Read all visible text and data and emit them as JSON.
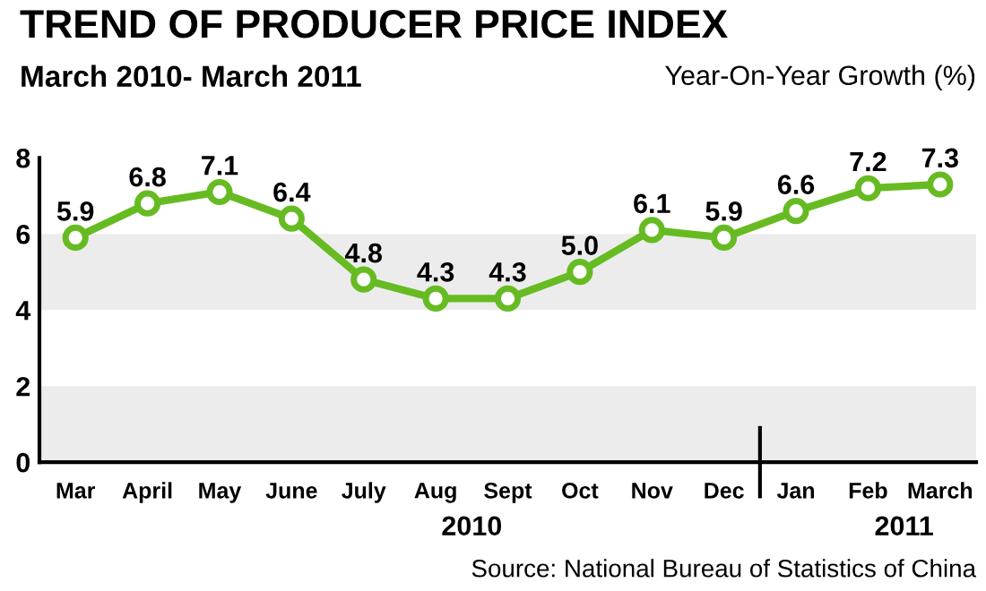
{
  "chart_data": {
    "type": "line",
    "title": "TREND OF PRODUCER PRICE INDEX",
    "subtitle": "March 2010- March 2011",
    "ylabel": "Year-On-Year Growth (%)",
    "categories": [
      "Mar",
      "April",
      "May",
      "June",
      "July",
      "Aug",
      "Sept",
      "Oct",
      "Nov",
      "Dec",
      "Jan",
      "Feb",
      "March"
    ],
    "series": [
      {
        "color": "#66bb22",
        "values": [
          5.9,
          6.8,
          7.1,
          6.4,
          4.8,
          4.3,
          4.3,
          5.0,
          6.1,
          5.9,
          6.6,
          7.2,
          7.3
        ],
        "value_labels": [
          "5.9",
          "6.8",
          "7.1",
          "6.4",
          "4.8",
          "4.3",
          "4.3",
          "5.0",
          "6.1",
          "5.9",
          "6.6",
          "7.2",
          "7.3"
        ]
      }
    ],
    "ylim": [
      0,
      8
    ],
    "yticks": [
      0,
      2,
      4,
      6,
      8
    ],
    "bands": [
      {
        "axis": "y",
        "from": 0,
        "to": 2,
        "color": "#ececec"
      },
      {
        "axis": "y",
        "from": 4,
        "to": 6,
        "color": "#ececec"
      }
    ],
    "marker": "circle",
    "line_style": "solid",
    "grid": false,
    "legend": false,
    "annotations": [
      "2010",
      "2011",
      "Source: National Bureau of Statistics of China"
    ]
  }
}
